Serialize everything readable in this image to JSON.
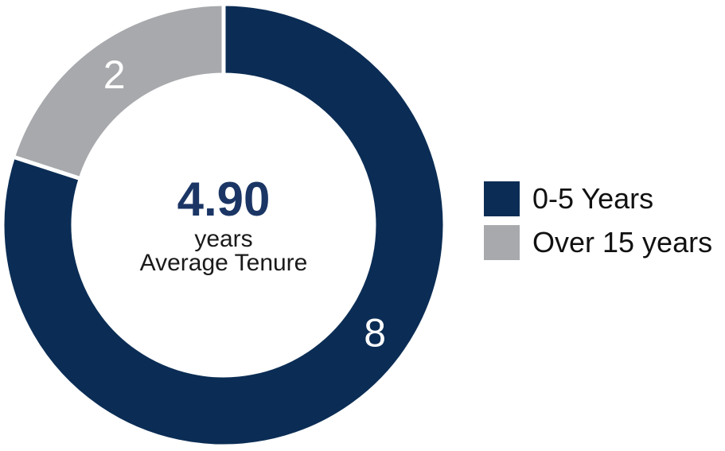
{
  "chart_data": {
    "type": "pie",
    "variant": "donut",
    "title": "",
    "slices": [
      {
        "label": "0-5 Years",
        "value": 8,
        "color": "#0b2d55"
      },
      {
        "label": "Over 15 years",
        "value": 2,
        "color": "#a7a9ac"
      }
    ],
    "total": 10,
    "center": {
      "value": "4.90",
      "unit": "years",
      "caption": "Average Tenure"
    },
    "legend_position": "right",
    "start_angle_deg": 0,
    "clockwise": true,
    "inner_radius_ratio": 0.68,
    "slice_gap_color": "#ffffff",
    "slice_gap_width": 5,
    "data_label_color": "#ffffff",
    "label_angles_deg": [
      125.5,
      324
    ]
  },
  "legend": {
    "items": [
      {
        "label": "0-5 Years",
        "color": "#0b2d55"
      },
      {
        "label": "Over 15 years",
        "color": "#a7a9ac"
      }
    ]
  },
  "colors": {
    "navy": "#0b2d55",
    "gray": "#a7a9ac",
    "center_value": "#1b3665",
    "center_text": "#1a1a1a",
    "legend_text": "#111111",
    "background": "#ffffff"
  }
}
